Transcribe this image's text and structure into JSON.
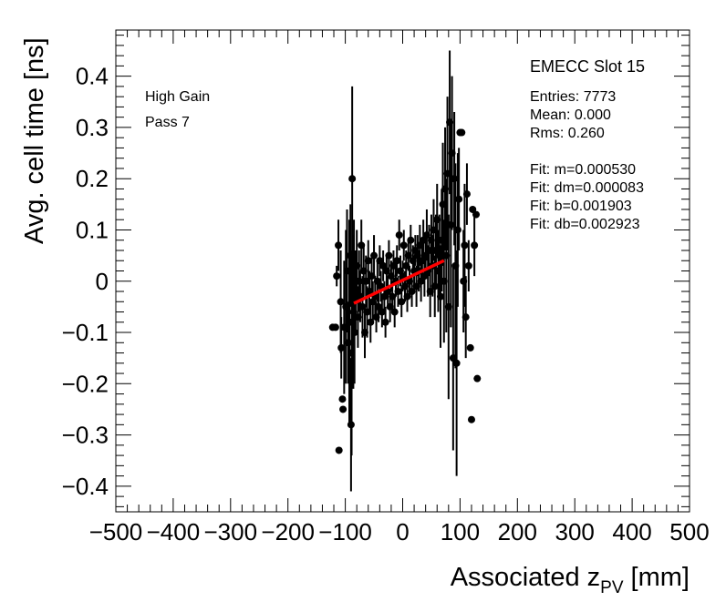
{
  "chart_data": {
    "type": "scatter",
    "title": "EMECC Slot 15",
    "xlabel_main": "Associated z",
    "xlabel_sub": "PV",
    "xlabel_unit": " [mm]",
    "ylabel": "Avg. cell time [ns]",
    "xlim": [
      -500,
      500
    ],
    "ylim": [
      -0.45,
      0.49
    ],
    "x_ticks": [
      -500,
      -400,
      -300,
      -200,
      -100,
      0,
      100,
      200,
      300,
      400,
      500
    ],
    "x_tick_labels": [
      "−500",
      "−400",
      "−300",
      "−200",
      "−100",
      "0",
      "100",
      "200",
      "300",
      "400",
      "500"
    ],
    "y_ticks": [
      -0.4,
      -0.3,
      -0.2,
      -0.1,
      0,
      0.1,
      0.2,
      0.3,
      0.4
    ],
    "y_tick_labels": [
      "−0.4",
      "−0.3",
      "−0.2",
      "−0.1",
      "0",
      "0.1",
      "0.2",
      "0.3",
      "0.4"
    ],
    "annotations": [
      "High Gain",
      "Pass 7"
    ],
    "stats": [
      "Entries: 7773",
      "Mean: 0.000",
      "Rms: 0.260",
      "",
      "Fit: m=0.000530",
      "Fit: dm=0.000083",
      "Fit: b=0.001903",
      "Fit: db=0.002923"
    ],
    "fit": {
      "slope": 0.00053,
      "intercept": 0.001903,
      "x_range": [
        -85,
        72
      ],
      "color": "#ff0000"
    },
    "series": [
      {
        "name": "cells",
        "points": [
          {
            "x": -122,
            "y": -0.09,
            "err": 0.0
          },
          {
            "x": -117,
            "y": -0.09,
            "err": 0.0
          },
          {
            "x": -115,
            "y": 0.01,
            "err": 0.02
          },
          {
            "x": -112,
            "y": 0.07,
            "err": 0.05
          },
          {
            "x": -111,
            "y": -0.33,
            "err": 0.0
          },
          {
            "x": -108,
            "y": -0.04,
            "err": 0.1
          },
          {
            "x": -107,
            "y": -0.13,
            "err": 0.06
          },
          {
            "x": -105,
            "y": -0.23,
            "err": 0.0
          },
          {
            "x": -104,
            "y": -0.25,
            "err": 0.0
          },
          {
            "x": -102,
            "y": -0.09,
            "err": 0.13
          },
          {
            "x": -99,
            "y": -0.05,
            "err": 0.15
          },
          {
            "x": -97,
            "y": 0.02,
            "err": 0.12
          },
          {
            "x": -95,
            "y": -0.12,
            "err": 0.08
          },
          {
            "x": -93,
            "y": -0.08,
            "err": 0.2
          },
          {
            "x": -91,
            "y": 0.05,
            "err": 0.1
          },
          {
            "x": -90,
            "y": -0.28,
            "err": 0.13
          },
          {
            "x": -89,
            "y": -0.14,
            "err": 0.2
          },
          {
            "x": -88,
            "y": 0.2,
            "err": 0.18
          },
          {
            "x": -86,
            "y": -0.06,
            "err": 0.15
          },
          {
            "x": -85,
            "y": 0.0,
            "err": 0.12
          },
          {
            "x": -84,
            "y": -0.1,
            "err": 0.1
          },
          {
            "x": -82,
            "y": -0.02,
            "err": 0.08
          },
          {
            "x": -80,
            "y": 0.03,
            "err": 0.07
          },
          {
            "x": -78,
            "y": -0.07,
            "err": 0.06
          },
          {
            "x": -76,
            "y": 0.0,
            "err": 0.06
          },
          {
            "x": -74,
            "y": -0.03,
            "err": 0.05
          },
          {
            "x": -72,
            "y": 0.07,
            "err": 0.05
          },
          {
            "x": -70,
            "y": -0.05,
            "err": 0.06
          },
          {
            "x": -68,
            "y": 0.02,
            "err": 0.05
          },
          {
            "x": -66,
            "y": -0.1,
            "err": 0.05
          },
          {
            "x": -64,
            "y": 0.0,
            "err": 0.05
          },
          {
            "x": -62,
            "y": -0.06,
            "err": 0.05
          },
          {
            "x": -60,
            "y": 0.04,
            "err": 0.04
          },
          {
            "x": -58,
            "y": -0.02,
            "err": 0.04
          },
          {
            "x": -56,
            "y": -0.08,
            "err": 0.04
          },
          {
            "x": -54,
            "y": 0.01,
            "err": 0.04
          },
          {
            "x": -52,
            "y": -0.04,
            "err": 0.04
          },
          {
            "x": -50,
            "y": 0.05,
            "err": 0.04
          },
          {
            "x": -48,
            "y": -0.03,
            "err": 0.04
          },
          {
            "x": -46,
            "y": -0.07,
            "err": 0.03
          },
          {
            "x": -44,
            "y": 0.0,
            "err": 0.04
          },
          {
            "x": -42,
            "y": -0.05,
            "err": 0.03
          },
          {
            "x": -40,
            "y": 0.04,
            "err": 0.03
          },
          {
            "x": -38,
            "y": -0.01,
            "err": 0.03
          },
          {
            "x": -36,
            "y": -0.06,
            "err": 0.03
          },
          {
            "x": -34,
            "y": 0.03,
            "err": 0.03
          },
          {
            "x": -32,
            "y": -0.03,
            "err": 0.03
          },
          {
            "x": -30,
            "y": -0.08,
            "err": 0.03
          },
          {
            "x": -28,
            "y": 0.02,
            "err": 0.03
          },
          {
            "x": -26,
            "y": -0.02,
            "err": 0.03
          },
          {
            "x": -24,
            "y": 0.05,
            "err": 0.03
          },
          {
            "x": -22,
            "y": -0.05,
            "err": 0.03
          },
          {
            "x": -20,
            "y": 0.01,
            "err": 0.03
          },
          {
            "x": -18,
            "y": -0.03,
            "err": 0.03
          },
          {
            "x": -16,
            "y": 0.03,
            "err": 0.03
          },
          {
            "x": -14,
            "y": -0.06,
            "err": 0.03
          },
          {
            "x": -12,
            "y": 0.0,
            "err": 0.03
          },
          {
            "x": -10,
            "y": 0.04,
            "err": 0.03
          },
          {
            "x": -8,
            "y": -0.02,
            "err": 0.03
          },
          {
            "x": -6,
            "y": 0.09,
            "err": 0.03
          },
          {
            "x": -4,
            "y": 0.02,
            "err": 0.03
          },
          {
            "x": -2,
            "y": -0.04,
            "err": 0.03
          },
          {
            "x": 0,
            "y": 0.01,
            "err": 0.03
          },
          {
            "x": 2,
            "y": 0.07,
            "err": 0.03
          },
          {
            "x": 4,
            "y": -0.01,
            "err": 0.03
          },
          {
            "x": 6,
            "y": 0.03,
            "err": 0.03
          },
          {
            "x": 8,
            "y": -0.03,
            "err": 0.03
          },
          {
            "x": 10,
            "y": 0.05,
            "err": 0.03
          },
          {
            "x": 12,
            "y": 0.0,
            "err": 0.03
          },
          {
            "x": 14,
            "y": 0.08,
            "err": 0.03
          },
          {
            "x": 16,
            "y": -0.02,
            "err": 0.03
          },
          {
            "x": 18,
            "y": 0.04,
            "err": 0.03
          },
          {
            "x": 20,
            "y": 0.02,
            "err": 0.03
          },
          {
            "x": 22,
            "y": 0.06,
            "err": 0.03
          },
          {
            "x": 24,
            "y": -0.01,
            "err": 0.04
          },
          {
            "x": 26,
            "y": 0.05,
            "err": 0.04
          },
          {
            "x": 28,
            "y": 0.02,
            "err": 0.04
          },
          {
            "x": 30,
            "y": 0.07,
            "err": 0.04
          },
          {
            "x": 32,
            "y": 0.0,
            "err": 0.04
          },
          {
            "x": 34,
            "y": 0.04,
            "err": 0.04
          },
          {
            "x": 36,
            "y": 0.08,
            "err": 0.04
          },
          {
            "x": 38,
            "y": 0.01,
            "err": 0.04
          },
          {
            "x": 40,
            "y": 0.05,
            "err": 0.04
          },
          {
            "x": 42,
            "y": 0.09,
            "err": 0.05
          },
          {
            "x": 44,
            "y": 0.02,
            "err": 0.05
          },
          {
            "x": 46,
            "y": 0.06,
            "err": 0.05
          },
          {
            "x": 48,
            "y": -0.02,
            "err": 0.05
          },
          {
            "x": 50,
            "y": 0.08,
            "err": 0.05
          },
          {
            "x": 52,
            "y": 0.03,
            "err": 0.06
          },
          {
            "x": 54,
            "y": 0.1,
            "err": 0.06
          },
          {
            "x": 56,
            "y": -0.01,
            "err": 0.06
          },
          {
            "x": 58,
            "y": 0.06,
            "err": 0.07
          },
          {
            "x": 60,
            "y": 0.12,
            "err": 0.07
          },
          {
            "x": 62,
            "y": 0.02,
            "err": 0.08
          },
          {
            "x": 64,
            "y": 0.05,
            "err": 0.08
          },
          {
            "x": 66,
            "y": -0.03,
            "err": 0.1
          },
          {
            "x": 68,
            "y": 0.08,
            "err": 0.1
          },
          {
            "x": 70,
            "y": 0.15,
            "err": 0.12
          },
          {
            "x": 72,
            "y": 0.0,
            "err": 0.12
          },
          {
            "x": 74,
            "y": 0.18,
            "err": 0.12
          },
          {
            "x": 76,
            "y": 0.05,
            "err": 0.15
          },
          {
            "x": 78,
            "y": 0.21,
            "err": 0.15
          },
          {
            "x": 80,
            "y": -0.05,
            "err": 0.18
          },
          {
            "x": 82,
            "y": 0.31,
            "err": 0.14
          },
          {
            "x": 84,
            "y": 0.11,
            "err": 0.2
          },
          {
            "x": 86,
            "y": 0.25,
            "err": 0.15
          },
          {
            "x": 88,
            "y": -0.15,
            "err": 0.18
          },
          {
            "x": 90,
            "y": 0.2,
            "err": 0.13
          },
          {
            "x": 92,
            "y": 0.03,
            "err": 0.2
          },
          {
            "x": 94,
            "y": -0.16,
            "err": 0.22
          },
          {
            "x": 96,
            "y": 0.1,
            "err": 0.15
          },
          {
            "x": 98,
            "y": 0.16,
            "err": 0.1
          },
          {
            "x": 100,
            "y": 0.29,
            "err": 0.0
          },
          {
            "x": 103,
            "y": 0.29,
            "err": 0.0
          },
          {
            "x": 106,
            "y": 0.0,
            "err": 0.1
          },
          {
            "x": 108,
            "y": 0.07,
            "err": 0.12
          },
          {
            "x": 110,
            "y": -0.07,
            "err": 0.08
          },
          {
            "x": 112,
            "y": 0.17,
            "err": 0.06
          },
          {
            "x": 115,
            "y": 0.03,
            "err": 0.05
          },
          {
            "x": 118,
            "y": -0.13,
            "err": 0.0
          },
          {
            "x": 120,
            "y": -0.27,
            "err": 0.0
          },
          {
            "x": 122,
            "y": 0.14,
            "err": 0.0
          },
          {
            "x": 125,
            "y": 0.07,
            "err": 0.06
          },
          {
            "x": 128,
            "y": 0.13,
            "err": 0.0
          },
          {
            "x": 130,
            "y": -0.19,
            "err": 0.0
          }
        ]
      }
    ]
  }
}
